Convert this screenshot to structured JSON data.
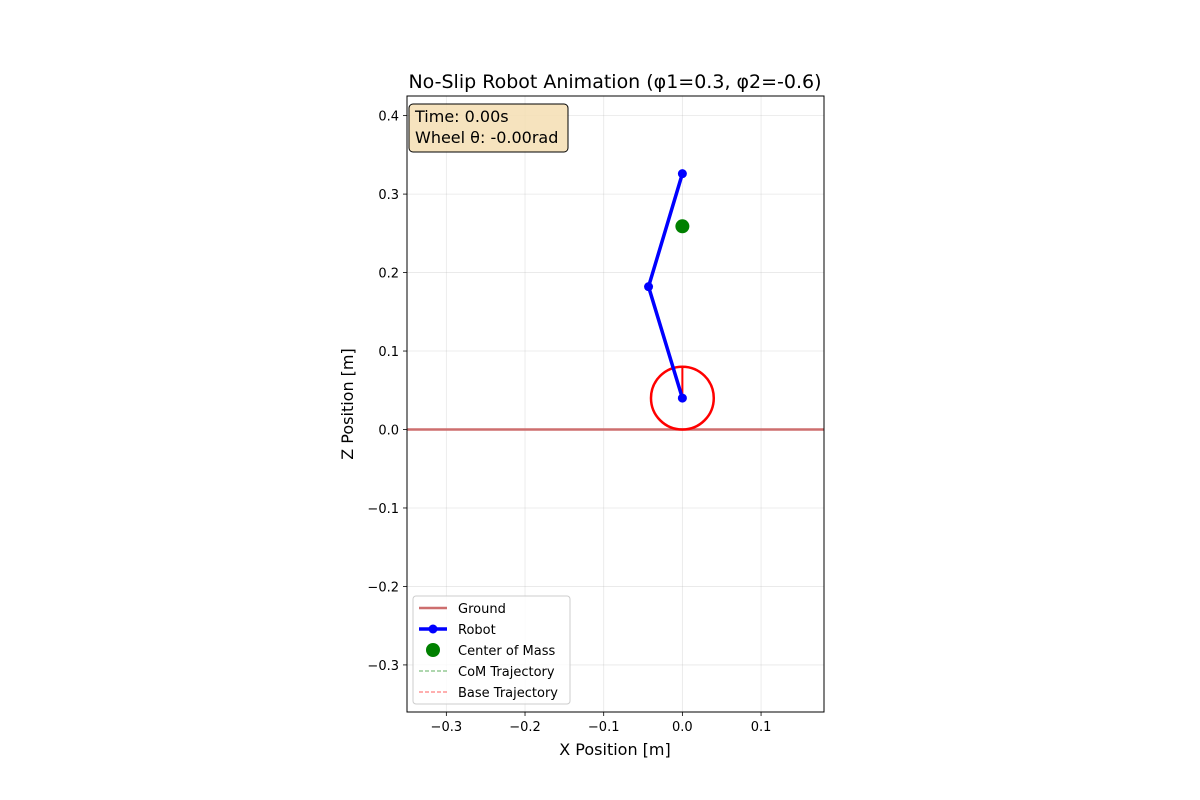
{
  "chart_data": {
    "type": "line",
    "title": "No-Slip Robot Animation (φ1=0.3, φ2=-0.6)",
    "xlabel": "X Position [m]",
    "ylabel": "Z Position [m]",
    "xlim": [
      -0.35,
      0.18
    ],
    "ylim": [
      -0.36,
      0.425
    ],
    "xticks": [
      -0.3,
      -0.2,
      -0.1,
      0.0,
      0.1
    ],
    "xtick_labels": [
      "−0.3",
      "−0.2",
      "−0.1",
      "0.0",
      "0.1"
    ],
    "yticks": [
      -0.3,
      -0.2,
      -0.1,
      0.0,
      0.1,
      0.2,
      0.3,
      0.4
    ],
    "ytick_labels": [
      "−0.3",
      "−0.2",
      "−0.1",
      "0.0",
      "0.1",
      "0.2",
      "0.3",
      "0.4"
    ],
    "grid": true,
    "legend_position": "lower-left",
    "ground": {
      "name": "Ground",
      "y": 0.0,
      "color": "#cd6e6e"
    },
    "robot": {
      "name": "Robot",
      "color": "#0000ff",
      "points": [
        {
          "x": 0.0,
          "z": 0.04
        },
        {
          "x": -0.043,
          "z": 0.182
        },
        {
          "x": 0.0,
          "z": 0.326
        }
      ]
    },
    "center_of_mass": {
      "name": "Center of Mass",
      "x": 0.0,
      "z": 0.259,
      "color": "#008000"
    },
    "wheel": {
      "center_x": 0.0,
      "center_z": 0.04,
      "radius": 0.04,
      "theta": -0.0,
      "color": "#ff0000"
    },
    "trajectories": [
      {
        "name": "CoM Trajectory",
        "color": "#008000"
      },
      {
        "name": "Base Trajectory",
        "color": "#ff0000"
      }
    ],
    "info_box": {
      "time_text": "Time: 0.00s",
      "wheel_text": "Wheel θ: -0.00rad",
      "background": "#f5deb3"
    }
  }
}
